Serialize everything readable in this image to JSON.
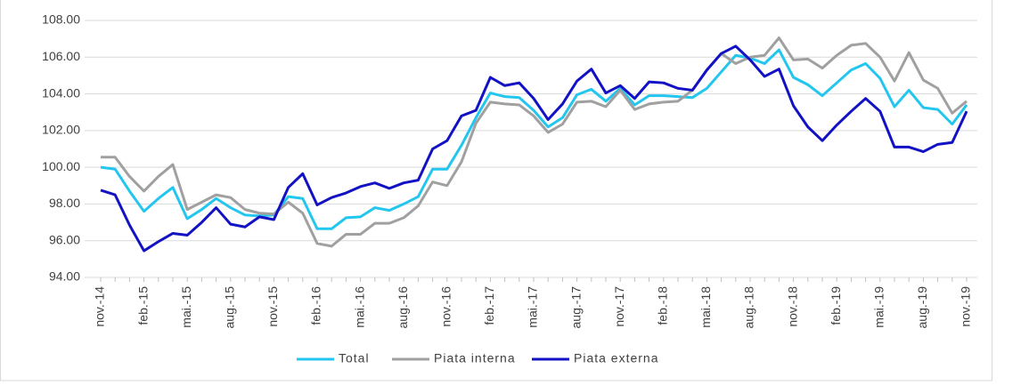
{
  "chart_data": {
    "type": "line",
    "categories": [
      "nov.-14",
      null,
      null,
      "feb.-15",
      null,
      null,
      "mai.-15",
      null,
      null,
      "aug.-15",
      null,
      null,
      "nov.-15",
      null,
      null,
      "feb.-16",
      null,
      null,
      "mai.-16",
      null,
      null,
      "aug.-16",
      null,
      null,
      "nov.-16",
      null,
      null,
      "feb.-17",
      null,
      null,
      "mai.-17",
      null,
      null,
      "aug.-17",
      null,
      null,
      "nov.-17",
      null,
      null,
      "feb.-18",
      null,
      null,
      "mai.-18",
      null,
      null,
      "aug.-18",
      null,
      null,
      "nov.-18",
      null,
      null,
      "feb.-19",
      null,
      null,
      "mai.-19",
      null,
      null,
      "aug.-19",
      null,
      null,
      "nov.-19"
    ],
    "series": [
      {
        "name": "Total",
        "color": "#22c6ee",
        "values": [
          100.0,
          99.9,
          98.7,
          97.6,
          98.3,
          98.9,
          97.2,
          97.7,
          98.3,
          97.8,
          97.4,
          97.35,
          97.4,
          98.4,
          98.3,
          96.65,
          96.65,
          97.25,
          97.3,
          97.8,
          97.65,
          98.0,
          98.4,
          99.9,
          99.9,
          101.2,
          102.7,
          104.05,
          103.85,
          103.8,
          103.1,
          102.2,
          102.7,
          103.95,
          104.25,
          103.6,
          104.3,
          103.4,
          103.9,
          103.9,
          103.85,
          103.8,
          104.3,
          105.2,
          106.1,
          105.95,
          105.65,
          106.4,
          104.9,
          104.5,
          103.9,
          104.6,
          105.3,
          105.65,
          104.85,
          103.3,
          104.2,
          103.25,
          103.15,
          102.35,
          103.4
        ]
      },
      {
        "name": "Piata interna",
        "color": "#a0a0a0",
        "values": [
          100.55,
          100.55,
          99.5,
          98.7,
          99.5,
          100.15,
          97.7,
          98.1,
          98.5,
          98.35,
          97.7,
          97.5,
          97.45,
          98.1,
          97.5,
          95.85,
          95.7,
          96.35,
          96.35,
          96.95,
          96.95,
          97.25,
          97.9,
          99.2,
          99.0,
          100.3,
          102.4,
          103.55,
          103.45,
          103.4,
          102.8,
          101.9,
          102.35,
          103.55,
          103.6,
          103.3,
          104.2,
          103.15,
          103.45,
          103.55,
          103.6,
          104.2,
          105.3,
          106.2,
          105.65,
          106.0,
          106.1,
          107.05,
          105.85,
          105.9,
          105.4,
          106.1,
          106.65,
          106.75,
          106.0,
          104.7,
          106.25,
          104.75,
          104.3,
          102.95,
          103.6
        ]
      },
      {
        "name": "Piata externa",
        "color": "#1212c4",
        "values": [
          98.75,
          98.5,
          96.85,
          95.45,
          95.95,
          96.4,
          96.3,
          97.0,
          97.8,
          96.9,
          96.75,
          97.3,
          97.15,
          98.9,
          99.65,
          97.95,
          98.35,
          98.6,
          98.95,
          99.15,
          98.85,
          99.15,
          99.3,
          101.0,
          101.45,
          102.8,
          103.1,
          104.9,
          104.45,
          104.6,
          103.75,
          102.6,
          103.45,
          104.7,
          105.35,
          104.05,
          104.45,
          103.75,
          104.65,
          104.6,
          104.3,
          104.2,
          105.3,
          106.2,
          106.6,
          105.85,
          104.95,
          105.35,
          103.35,
          102.2,
          101.45,
          102.3,
          103.05,
          103.75,
          103.05,
          101.1,
          101.1,
          100.85,
          101.25,
          101.35,
          103.05
        ]
      }
    ],
    "ylim": [
      94,
      108
    ],
    "yticks": [
      {
        "value": 94,
        "label": "94.00"
      },
      {
        "value": 96,
        "label": "96.00"
      },
      {
        "value": 98,
        "label": "98.00"
      },
      {
        "value": 100,
        "label": "100.00"
      },
      {
        "value": 102,
        "label": "102.00"
      },
      {
        "value": 104,
        "label": "104.00"
      },
      {
        "value": 106,
        "label": "106.00"
      },
      {
        "value": 108,
        "label": "108.00"
      }
    ],
    "grid": true,
    "legend": "bottom"
  }
}
